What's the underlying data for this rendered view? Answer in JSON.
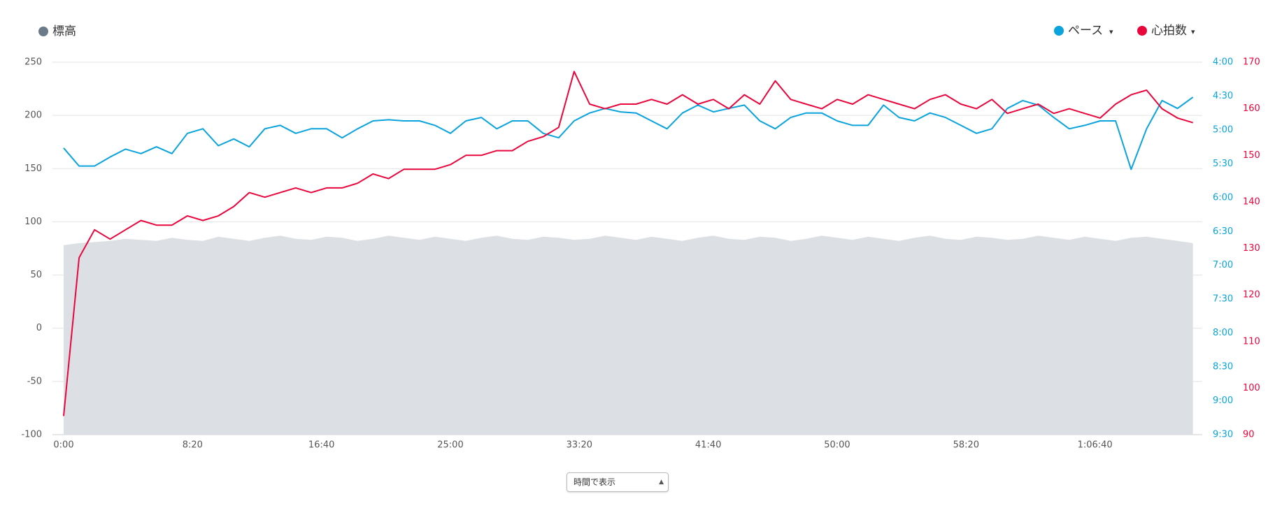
{
  "chart_data": {
    "type": "line",
    "x": [
      0,
      60,
      120,
      180,
      240,
      300,
      360,
      420,
      480,
      540,
      600,
      660,
      720,
      780,
      840,
      900,
      960,
      1020,
      1080,
      1140,
      1200,
      1260,
      1320,
      1380,
      1440,
      1500,
      1560,
      1620,
      1680,
      1740,
      1800,
      1860,
      1920,
      1980,
      2040,
      2100,
      2160,
      2220,
      2280,
      2340,
      2400,
      2460,
      2520,
      2580,
      2640,
      2700,
      2760,
      2820,
      2880,
      2940,
      3000,
      3060,
      3120,
      3180,
      3240,
      3300,
      3360,
      3420,
      3480,
      3540,
      3600,
      3660,
      3720,
      3780,
      3840,
      3900,
      3960,
      4020,
      4080,
      4140,
      4200,
      4260,
      4320,
      4380
    ],
    "xlim": [
      0,
      4416
    ],
    "xticks": [
      {
        "value": 0,
        "label": "0:00"
      },
      {
        "value": 500,
        "label": "8:20"
      },
      {
        "value": 1000,
        "label": "16:40"
      },
      {
        "value": 1500,
        "label": "25:00"
      },
      {
        "value": 2000,
        "label": "33:20"
      },
      {
        "value": 2500,
        "label": "41:40"
      },
      {
        "value": 3000,
        "label": "50:00"
      },
      {
        "value": 3500,
        "label": "58:20"
      },
      {
        "value": 4000,
        "label": "1:06:40"
      }
    ],
    "ylim": [
      -100,
      250
    ],
    "yticks": [
      -100,
      -50,
      0,
      50,
      100,
      150,
      200,
      250
    ],
    "grid": true,
    "y2lim": [
      570,
      240
    ],
    "y2ticks": [
      {
        "value": 240,
        "label": "4:00"
      },
      {
        "value": 270,
        "label": "4:30"
      },
      {
        "value": 300,
        "label": "5:00"
      },
      {
        "value": 330,
        "label": "5:30"
      },
      {
        "value": 360,
        "label": "6:00"
      },
      {
        "value": 390,
        "label": "6:30"
      },
      {
        "value": 420,
        "label": "7:00"
      },
      {
        "value": 450,
        "label": "7:30"
      },
      {
        "value": 480,
        "label": "8:00"
      },
      {
        "value": 510,
        "label": "8:30"
      },
      {
        "value": 540,
        "label": "9:00"
      },
      {
        "value": 570,
        "label": "9:30"
      }
    ],
    "y3lim": [
      90,
      170
    ],
    "y3ticks": [
      90,
      100,
      110,
      120,
      130,
      140,
      150,
      160,
      170
    ],
    "series": [
      {
        "name": "標高",
        "color": "#6b7a88",
        "fill": "#dce0e4",
        "axis": "y",
        "values": [
          78,
          80,
          81,
          82,
          84,
          83,
          82,
          85,
          83,
          82,
          86,
          84,
          82,
          85,
          87,
          84,
          83,
          86,
          85,
          82,
          84,
          87,
          85,
          83,
          86,
          84,
          82,
          85,
          87,
          84,
          83,
          86,
          85,
          83,
          84,
          87,
          85,
          83,
          86,
          84,
          82,
          85,
          87,
          84,
          83,
          86,
          85,
          82,
          84,
          87,
          85,
          83,
          86,
          84,
          82,
          85,
          87,
          84,
          83,
          86,
          85,
          83,
          84,
          87,
          85,
          83,
          86,
          84,
          82,
          85,
          86,
          84,
          82,
          80
        ]
      },
      {
        "name": "ペース",
        "color": "#0aa3dc",
        "axis": "y2",
        "values": [
          316,
          332,
          332,
          324,
          317,
          321,
          315,
          321,
          303,
          299,
          314,
          308,
          315,
          299,
          296,
          303,
          299,
          299,
          307,
          299,
          292,
          291,
          292,
          292,
          296,
          303,
          292,
          289,
          299,
          292,
          292,
          303,
          307,
          292,
          285,
          281,
          284,
          285,
          292,
          299,
          285,
          278,
          284,
          281,
          278,
          292,
          299,
          289,
          285,
          285,
          292,
          296,
          296,
          278,
          289,
          292,
          285,
          289,
          296,
          303,
          299,
          281,
          274,
          278,
          289,
          299,
          296,
          292,
          292,
          335,
          299,
          274,
          281,
          271
        ]
      },
      {
        "name": "心拍数",
        "color": "#e8063c",
        "axis": "y3",
        "values": [
          94,
          128,
          134,
          132,
          134,
          136,
          135,
          135,
          137,
          136,
          137,
          139,
          142,
          141,
          142,
          143,
          142,
          143,
          143,
          144,
          146,
          145,
          147,
          147,
          147,
          148,
          150,
          150,
          151,
          151,
          153,
          154,
          156,
          168,
          161,
          160,
          161,
          161,
          162,
          161,
          163,
          161,
          162,
          160,
          163,
          161,
          166,
          162,
          161,
          160,
          162,
          161,
          163,
          162,
          161,
          160,
          162,
          163,
          161,
          160,
          162,
          159,
          160,
          161,
          159,
          160,
          159,
          158,
          161,
          163,
          164,
          160,
          158,
          157
        ]
      }
    ],
    "view_select": "時間で表示"
  }
}
